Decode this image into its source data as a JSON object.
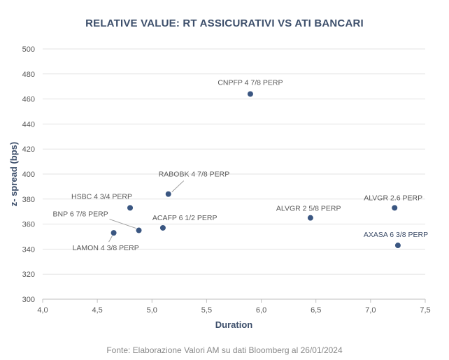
{
  "chart_data": {
    "type": "scatter",
    "title": "RELATIVE VALUE: RT ASSICURATIVI VS ATI BANCARI",
    "xlabel": "Duration",
    "ylabel": "z- spread (bps)",
    "xlim": [
      4.0,
      7.5
    ],
    "ylim": [
      300,
      500
    ],
    "xticks": [
      "4,0",
      "4,5",
      "5,0",
      "5,5",
      "6,0",
      "6,5",
      "7,0",
      "7,5"
    ],
    "yticks": [
      "300",
      "320",
      "340",
      "360",
      "380",
      "400",
      "420",
      "440",
      "460",
      "480",
      "500"
    ],
    "grid": "horizontal",
    "point_color": "#3a5681",
    "points": [
      {
        "label": "CNPFP 4 7/8 PERP",
        "x": 5.9,
        "y": 464
      },
      {
        "label": "RABOBK 4 7/8 PERP",
        "x": 5.15,
        "y": 384
      },
      {
        "label": "HSBC 4 3/4 PERP",
        "x": 4.8,
        "y": 373
      },
      {
        "label": "BNP 6 7/8 PERP",
        "x": 4.88,
        "y": 355
      },
      {
        "label": "ACAFP 6 1/2 PERP",
        "x": 5.1,
        "y": 357
      },
      {
        "label": "LAMON 4 3/8 PERP",
        "x": 4.65,
        "y": 353
      },
      {
        "label": "ALVGR 2 5/8 PERP",
        "x": 6.45,
        "y": 365
      },
      {
        "label": "ALVGR 2.6 PERP",
        "x": 7.22,
        "y": 373
      },
      {
        "label": "AXASA 6 3/8 PERP",
        "x": 7.25,
        "y": 343
      }
    ],
    "source": "Fonte: Elaborazione Valori AM su dati Bloomberg al 26/01/2024"
  }
}
